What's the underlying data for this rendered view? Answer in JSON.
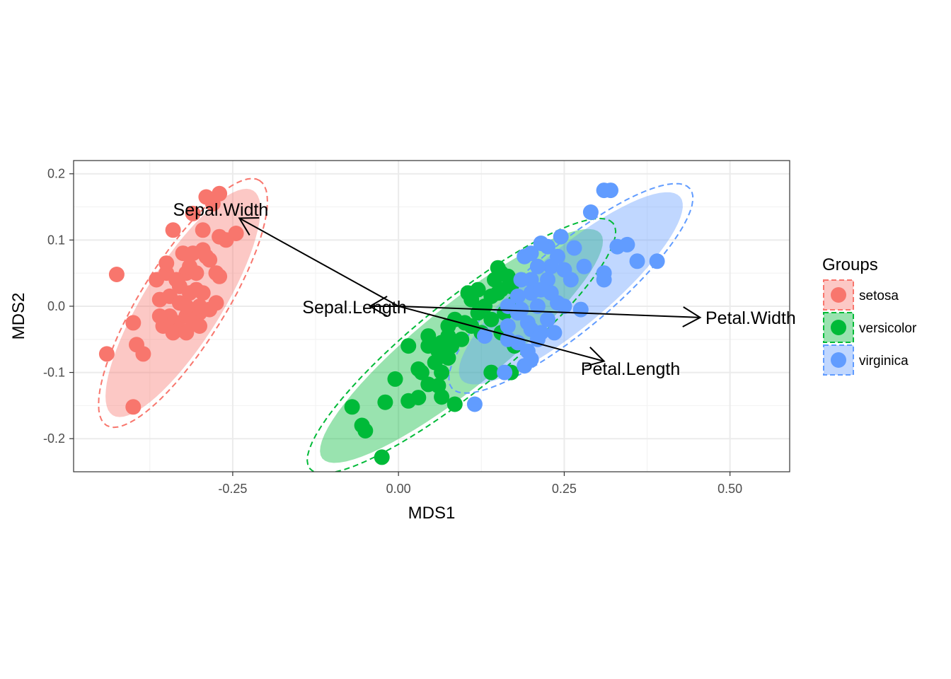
{
  "chart_data": {
    "type": "scatter",
    "xlabel": "MDS1",
    "ylabel": "MDS2",
    "xlim": [
      -0.49,
      0.59
    ],
    "ylim": [
      -0.25,
      0.22
    ],
    "x_ticks": [
      {
        "value": -0.25,
        "label": "-0.25"
      },
      {
        "value": 0.0,
        "label": "0.00"
      },
      {
        "value": 0.25,
        "label": "0.25"
      },
      {
        "value": 0.5,
        "label": "0.50"
      }
    ],
    "y_ticks": [
      {
        "value": 0.2,
        "label": "0.2"
      },
      {
        "value": 0.1,
        "label": "0.1"
      },
      {
        "value": 0.0,
        "label": "0.0"
      },
      {
        "value": -0.1,
        "label": "-0.1"
      },
      {
        "value": -0.2,
        "label": "-0.2"
      }
    ],
    "grid": true,
    "legend": {
      "title": "Groups",
      "placement": "right"
    },
    "series": [
      {
        "name": "setosa",
        "color": "#F8766D",
        "ellipse": {
          "center": [
            -0.325,
            0.005
          ],
          "angle_deg": 58,
          "semi_major": 0.2,
          "semi_minor": 0.058
        },
        "points": [
          [
            -0.27,
            0.17
          ],
          [
            -0.29,
            0.165
          ],
          [
            -0.28,
            0.155
          ],
          [
            -0.31,
            0.14
          ],
          [
            -0.34,
            0.115
          ],
          [
            -0.295,
            0.115
          ],
          [
            -0.245,
            0.11
          ],
          [
            -0.27,
            0.105
          ],
          [
            -0.26,
            0.1
          ],
          [
            -0.295,
            0.085
          ],
          [
            -0.325,
            0.08
          ],
          [
            -0.31,
            0.08
          ],
          [
            -0.29,
            0.075
          ],
          [
            -0.35,
            0.05
          ],
          [
            -0.32,
            0.05
          ],
          [
            -0.305,
            0.05
          ],
          [
            -0.27,
            0.045
          ],
          [
            -0.33,
            0.03
          ],
          [
            -0.305,
            0.025
          ],
          [
            -0.295,
            0.02
          ],
          [
            -0.315,
            0.02
          ],
          [
            -0.345,
            0.015
          ],
          [
            -0.33,
            0.005
          ],
          [
            -0.36,
            0.01
          ],
          [
            -0.3,
            -0.01
          ],
          [
            -0.32,
            -0.015
          ],
          [
            -0.345,
            -0.015
          ],
          [
            -0.31,
            -0.025
          ],
          [
            -0.335,
            -0.025
          ],
          [
            -0.33,
            -0.035
          ],
          [
            -0.3,
            -0.03
          ],
          [
            -0.355,
            -0.03
          ],
          [
            -0.34,
            -0.04
          ],
          [
            -0.36,
            -0.015
          ],
          [
            -0.32,
            -0.04
          ],
          [
            -0.275,
            0.005
          ],
          [
            -0.285,
            -0.005
          ],
          [
            -0.365,
            0.04
          ],
          [
            -0.3,
            0.0
          ],
          [
            -0.425,
            0.048
          ],
          [
            -0.35,
            0.065
          ],
          [
            -0.315,
            0.06
          ],
          [
            -0.32,
            0.0
          ],
          [
            -0.335,
            0.04
          ],
          [
            -0.4,
            -0.025
          ],
          [
            -0.395,
            -0.058
          ],
          [
            -0.385,
            -0.072
          ],
          [
            -0.44,
            -0.072
          ],
          [
            -0.4,
            -0.152
          ],
          [
            -0.275,
            0.05
          ],
          [
            -0.285,
            0.07
          ]
        ]
      },
      {
        "name": "versicolor",
        "color": "#00BA38",
        "ellipse": {
          "center": [
            0.095,
            -0.06
          ],
          "angle_deg": 39,
          "semi_major": 0.27,
          "semi_minor": 0.062
        },
        "points": [
          [
            -0.025,
            -0.228
          ],
          [
            -0.055,
            -0.18
          ],
          [
            -0.05,
            -0.188
          ],
          [
            -0.07,
            -0.152
          ],
          [
            -0.02,
            -0.145
          ],
          [
            0.015,
            -0.143
          ],
          [
            0.03,
            -0.138
          ],
          [
            0.065,
            -0.137
          ],
          [
            0.085,
            -0.148
          ],
          [
            -0.005,
            -0.11
          ],
          [
            0.045,
            -0.118
          ],
          [
            0.035,
            -0.1
          ],
          [
            0.06,
            -0.12
          ],
          [
            0.03,
            -0.095
          ],
          [
            0.065,
            -0.1
          ],
          [
            0.055,
            -0.085
          ],
          [
            0.075,
            -0.078
          ],
          [
            0.06,
            -0.068
          ],
          [
            0.08,
            -0.06
          ],
          [
            0.045,
            -0.06
          ],
          [
            0.065,
            -0.055
          ],
          [
            0.075,
            -0.045
          ],
          [
            0.095,
            -0.05
          ],
          [
            0.075,
            -0.03
          ],
          [
            0.11,
            -0.03
          ],
          [
            0.085,
            -0.02
          ],
          [
            0.1,
            -0.025
          ],
          [
            0.12,
            -0.01
          ],
          [
            0.13,
            0.0
          ],
          [
            0.11,
            0.01
          ],
          [
            0.14,
            0.015
          ],
          [
            0.155,
            0.025
          ],
          [
            0.17,
            0.03
          ],
          [
            0.15,
            0.02
          ],
          [
            0.175,
            0.005
          ],
          [
            0.16,
            -0.01
          ],
          [
            0.14,
            -0.02
          ],
          [
            0.125,
            -0.04
          ],
          [
            0.175,
            -0.06
          ],
          [
            0.155,
            -0.04
          ],
          [
            0.14,
            -0.1
          ],
          [
            0.17,
            -0.1
          ],
          [
            0.105,
            0.02
          ],
          [
            0.12,
            0.025
          ],
          [
            0.145,
            0.04
          ],
          [
            0.165,
            0.045
          ],
          [
            0.155,
            0.05
          ],
          [
            0.15,
            0.058
          ],
          [
            0.045,
            -0.045
          ],
          [
            0.015,
            -0.06
          ]
        ]
      },
      {
        "name": "virginica",
        "color": "#619CFF",
        "ellipse": {
          "center": [
            0.26,
            0.027
          ],
          "angle_deg": 40,
          "semi_major": 0.215,
          "semi_minor": 0.058
        },
        "points": [
          [
            0.31,
            0.175
          ],
          [
            0.32,
            0.175
          ],
          [
            0.29,
            0.142
          ],
          [
            0.245,
            0.105
          ],
          [
            0.33,
            0.09
          ],
          [
            0.345,
            0.093
          ],
          [
            0.39,
            0.068
          ],
          [
            0.36,
            0.068
          ],
          [
            0.225,
            0.09
          ],
          [
            0.215,
            0.095
          ],
          [
            0.265,
            0.088
          ],
          [
            0.2,
            0.08
          ],
          [
            0.19,
            0.075
          ],
          [
            0.24,
            0.075
          ],
          [
            0.28,
            0.06
          ],
          [
            0.23,
            0.06
          ],
          [
            0.21,
            0.06
          ],
          [
            0.25,
            0.055
          ],
          [
            0.31,
            0.05
          ],
          [
            0.31,
            0.04
          ],
          [
            0.26,
            0.04
          ],
          [
            0.225,
            0.04
          ],
          [
            0.2,
            0.04
          ],
          [
            0.185,
            0.04
          ],
          [
            0.2,
            0.02
          ],
          [
            0.215,
            0.025
          ],
          [
            0.23,
            0.02
          ],
          [
            0.18,
            0.015
          ],
          [
            0.21,
            0.0
          ],
          [
            0.24,
            0.005
          ],
          [
            0.165,
            0.0
          ],
          [
            0.18,
            -0.01
          ],
          [
            0.195,
            -0.025
          ],
          [
            0.165,
            -0.03
          ],
          [
            0.2,
            -0.035
          ],
          [
            0.215,
            -0.04
          ],
          [
            0.235,
            -0.04
          ],
          [
            0.165,
            -0.05
          ],
          [
            0.18,
            -0.055
          ],
          [
            0.21,
            -0.05
          ],
          [
            0.275,
            -0.005
          ],
          [
            0.25,
            0.0
          ],
          [
            0.225,
            -0.02
          ],
          [
            0.2,
            -0.08
          ],
          [
            0.19,
            -0.09
          ],
          [
            0.16,
            -0.1
          ],
          [
            0.115,
            -0.148
          ],
          [
            0.195,
            -0.068
          ],
          [
            0.13,
            -0.045
          ],
          [
            0.185,
            -0.005
          ]
        ]
      }
    ],
    "arrows": [
      {
        "label": "Sepal.Width",
        "end": [
          -0.24,
          0.133
        ]
      },
      {
        "label": "Sepal.Length",
        "end": [
          -0.043,
          0.0
        ]
      },
      {
        "label": "Petal.Width",
        "end": [
          0.455,
          -0.017
        ]
      },
      {
        "label": "Petal.Length",
        "end": [
          0.31,
          -0.083
        ]
      }
    ],
    "arrow_origin": [
      0.0,
      0.0
    ]
  }
}
